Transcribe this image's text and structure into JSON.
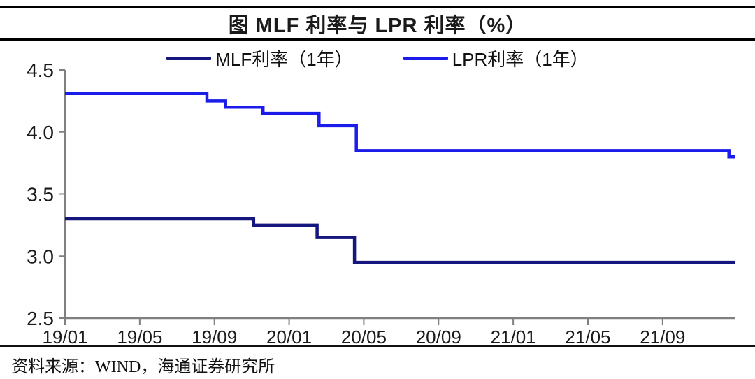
{
  "title": "图 MLF 利率与 LPR 利率（%）",
  "legend": {
    "items": [
      {
        "label": "MLF利率（1年）",
        "color": "#16167f"
      },
      {
        "label": "LPR利率（1年）",
        "color": "#1b1bea"
      }
    ]
  },
  "footer": {
    "source_label": "资料来源：WIND，海通证券研究所"
  },
  "chart_data": {
    "type": "line",
    "subtype": "step",
    "title": "图 MLF 利率与 LPR 利率（%）",
    "xlabel": "",
    "ylabel": "",
    "ylim": [
      2.5,
      4.5
    ],
    "y_ticks": [
      4.5,
      4.0,
      3.5,
      3.0,
      2.5
    ],
    "x_tick_labels": [
      "19/01",
      "19/05",
      "19/09",
      "20/01",
      "20/05",
      "20/09",
      "21/01",
      "21/05",
      "21/09"
    ],
    "x_tick_months": [
      0,
      4,
      8,
      12,
      16,
      20,
      24,
      28,
      32
    ],
    "x_end_month": 35.9,
    "grid": false,
    "legend_position": "top",
    "axis_color": "#808080",
    "tick_label_color": "#1a1a1a",
    "series": [
      {
        "name": "MLF利率（1年）",
        "slug": "mlf-1y",
        "color": "#16167f",
        "points": [
          {
            "t": 0,
            "v": 3.3
          },
          {
            "t": 10.1,
            "v": 3.25
          },
          {
            "t": 13.5,
            "v": 3.15
          },
          {
            "t": 15.5,
            "v": 2.95
          }
        ]
      },
      {
        "name": "LPR利率（1年）",
        "slug": "lpr-1y",
        "color": "#1b1bea",
        "points": [
          {
            "t": 0,
            "v": 4.31
          },
          {
            "t": 7.6,
            "v": 4.25
          },
          {
            "t": 8.6,
            "v": 4.2
          },
          {
            "t": 10.6,
            "v": 4.15
          },
          {
            "t": 13.6,
            "v": 4.05
          },
          {
            "t": 15.6,
            "v": 3.85
          },
          {
            "t": 35.55,
            "v": 3.8
          }
        ]
      }
    ]
  }
}
